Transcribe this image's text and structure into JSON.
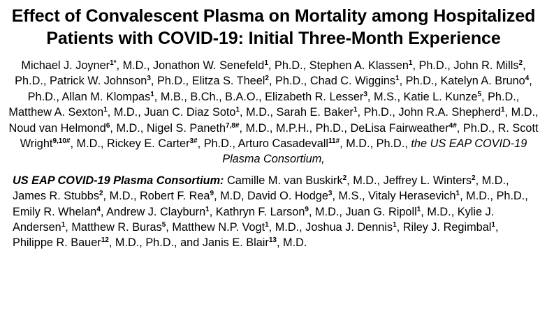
{
  "title": "Effect of Convalescent Plasma on Mortality among Hospitalized Patients with COVID-19: Initial Three-Month Experience",
  "authors": [
    {
      "name": "Michael J. Joyner",
      "aff": "1*",
      "deg": "M.D."
    },
    {
      "name": "Jonathon W. Senefeld",
      "aff": "1",
      "deg": "Ph.D."
    },
    {
      "name": "Stephen A. Klassen",
      "aff": "1",
      "deg": "Ph.D."
    },
    {
      "name": "John R. Mills",
      "aff": "2",
      "deg": "Ph.D."
    },
    {
      "name": "Patrick W. Johnson",
      "aff": "3",
      "deg": "Ph.D."
    },
    {
      "name": "Elitza S. Theel",
      "aff": "2",
      "deg": "Ph.D."
    },
    {
      "name": "Chad C. Wiggins",
      "aff": "1",
      "deg": "Ph.D."
    },
    {
      "name": "Katelyn A. Bruno",
      "aff": "4",
      "deg": "Ph.D."
    },
    {
      "name": "Allan M. Klompas",
      "aff": "1",
      "deg": "M.B., B.Ch., B.A.O."
    },
    {
      "name": "Elizabeth R. Lesser",
      "aff": "3",
      "deg": "M.S."
    },
    {
      "name": "Katie L. Kunze",
      "aff": "5",
      "deg": "Ph.D."
    },
    {
      "name": "Matthew A. Sexton",
      "aff": "1",
      "deg": "M.D."
    },
    {
      "name": "Juan C. Diaz Soto",
      "aff": "1",
      "deg": "M.D."
    },
    {
      "name": "Sarah E. Baker",
      "aff": "1",
      "deg": "Ph.D."
    },
    {
      "name": "John R.A. Shepherd",
      "aff": "1",
      "deg": "M.D."
    },
    {
      "name": "Noud van Helmond",
      "aff": "6",
      "deg": "M.D."
    },
    {
      "name": "Nigel S. Paneth",
      "aff": "7,8#",
      "deg": "M.D., M.P.H., Ph.D."
    },
    {
      "name": "DeLisa Fairweather",
      "aff": "4#",
      "deg": "Ph.D."
    },
    {
      "name": "R. Scott Wright",
      "aff": "9,10#",
      "deg": "M.D."
    },
    {
      "name": "Rickey E. Carter",
      "aff": "3#",
      "deg": "Ph.D."
    },
    {
      "name": "Arturo Casadevall",
      "aff": "11#",
      "deg": "M.D., Ph.D."
    }
  ],
  "consortium_name": "the US EAP COVID-19 Plasma Consortium,",
  "consortium": {
    "label": "US EAP COVID-19 Plasma Consortium:",
    "members": [
      {
        "name": "Camille M. van Buskirk",
        "aff": "2",
        "deg": "M.D."
      },
      {
        "name": "Jeffrey L. Winters",
        "aff": "2",
        "deg": "M.D."
      },
      {
        "name": "James R. Stubbs",
        "aff": "2",
        "deg": "M.D."
      },
      {
        "name": "Robert F. Rea",
        "aff": "9",
        "deg": "M.D"
      },
      {
        "name": "David O. Hodge",
        "aff": "3",
        "deg": "M.S."
      },
      {
        "name": "Vitaly Herasevich",
        "aff": "1",
        "deg": "M.D., Ph.D."
      },
      {
        "name": "Emily R. Whelan",
        "aff": "4",
        "deg": ""
      },
      {
        "name": "Andrew J. Clayburn",
        "aff": "1",
        "deg": ""
      },
      {
        "name": "Kathryn F. Larson",
        "aff": "9",
        "deg": "M.D."
      },
      {
        "name": "Juan G. Ripoll",
        "aff": "1",
        "deg": "M.D."
      },
      {
        "name": "Kylie J. Andersen",
        "aff": "1",
        "deg": ""
      },
      {
        "name": "Matthew R. Buras",
        "aff": "5",
        "deg": ""
      },
      {
        "name": "Matthew N.P. Vogt",
        "aff": "1",
        "deg": "M.D."
      },
      {
        "name": "Joshua J. Dennis",
        "aff": "1",
        "deg": ""
      },
      {
        "name": "Riley J. Regimbal",
        "aff": "1",
        "deg": ""
      },
      {
        "name": "Philippe R. Bauer",
        "aff": "12",
        "deg": "M.D., Ph.D."
      },
      {
        "name": "Janis E. Blair",
        "aff": "13",
        "deg": "M.D."
      }
    ],
    "final_joiner": "and"
  }
}
